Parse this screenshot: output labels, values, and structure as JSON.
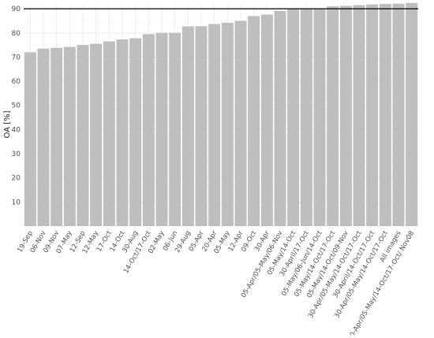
{
  "chart_data": {
    "type": "bar",
    "title": "",
    "xlabel": "",
    "ylabel": "OA [%]",
    "ylim": [
      0,
      92
    ],
    "yticks": [
      10,
      20,
      30,
      40,
      50,
      60,
      70,
      80,
      90
    ],
    "grid": true,
    "bar_color": "#bebebe",
    "reference_line": {
      "y": 90,
      "color": "#000000"
    },
    "categories": [
      "19-Sep",
      "06-Nov",
      "09-Nov",
      "07-May",
      "12-Sep",
      "12-May",
      "17-Oct",
      "14-Oct",
      "30-Aug",
      "14-Oct/17-Oct",
      "02-May",
      "06-Jun",
      "29-Aug",
      "05-Apr",
      "20-Apr",
      "05-May",
      "12-Apr",
      "09-Oct",
      "30-Apr",
      "05-Apr/05-May/06-Nov",
      "05-May/14-Oct",
      "30-April/17-Oct",
      "05-May/06-Jun/14-Oct",
      "05-May/14-Oct/17-Oct",
      "05-May/14-Oct/09-Nov",
      "30-Apr/05-May/14-Oct/17-Oct",
      "30-April/14-Oct/17-Oct",
      "30-Apr/05-May/14-Oct/17-Oct",
      "All images",
      "30-Apr/05-May/14-Oct/17-Oct/ Nov08"
    ],
    "values": [
      72.0,
      73.5,
      73.8,
      74.2,
      75.0,
      75.5,
      76.5,
      77.3,
      77.8,
      79.5,
      80.0,
      80.0,
      82.7,
      82.8,
      83.7,
      84.2,
      85.0,
      87.0,
      87.6,
      89.1,
      90.0,
      90.0,
      90.2,
      91.0,
      91.2,
      91.5,
      91.8,
      92.0,
      92.1,
      92.4
    ]
  }
}
